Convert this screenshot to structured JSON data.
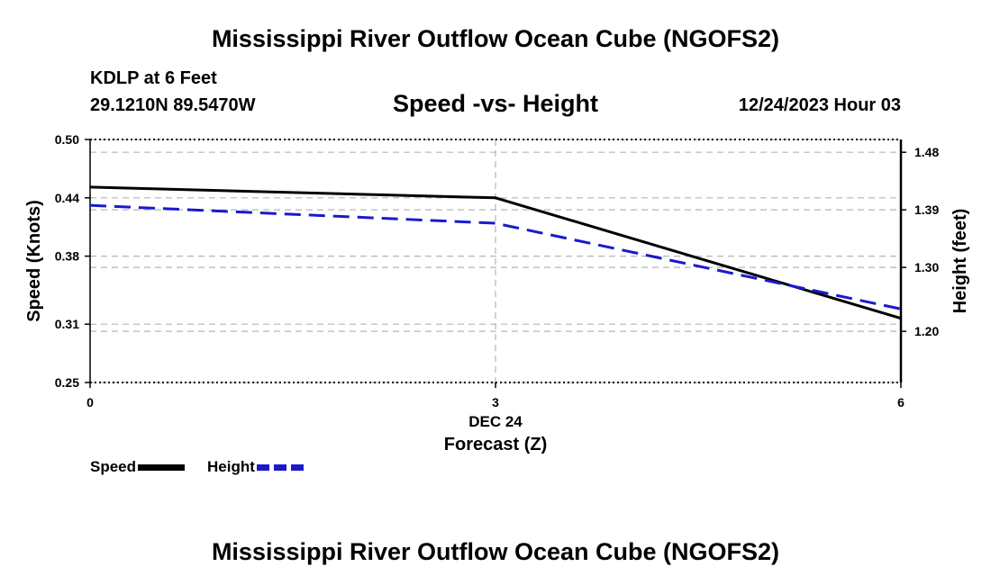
{
  "header": {
    "title": "Mississippi River Outflow Ocean Cube (NGOFS2)",
    "station": "KDLP at 6 Feet",
    "coords": "29.1210N  89.5470W",
    "subtitle": "Speed -vs- Height",
    "datetime": "12/24/2023 Hour 03"
  },
  "footer": {
    "title": "Mississippi River Outflow Ocean Cube (NGOFS2)"
  },
  "legend": [
    {
      "label": "Speed",
      "color": "#000000"
    },
    {
      "label": "Height",
      "color": "#1a1acc"
    }
  ],
  "chart_data": {
    "type": "line",
    "title": "Speed -vs- Height",
    "x": [
      0,
      3,
      6
    ],
    "xlim": [
      0,
      6
    ],
    "x_tick_labels": [
      "0",
      "3",
      "6"
    ],
    "x_date_label": "DEC 24",
    "xlabel": "Forecast (Z)",
    "ylabel": "Speed (Knots)",
    "ylim": [
      0.25,
      0.5
    ],
    "y_ticks": [
      0.25,
      0.31,
      0.38,
      0.44,
      0.5
    ],
    "y_tick_labels": [
      "0.25",
      "0.31",
      "0.38",
      "0.44",
      "0.50"
    ],
    "y2label": "Height (feet)",
    "y2lim": [
      1.12,
      1.5
    ],
    "y2_ticks": [
      1.2,
      1.3,
      1.39,
      1.48
    ],
    "y2_tick_labels": [
      "1.20",
      "1.30",
      "1.39",
      "1.48"
    ],
    "grid": true,
    "series": [
      {
        "name": "Speed",
        "axis": "left",
        "values": [
          0.451,
          0.44,
          0.316
        ],
        "color": "#000000",
        "style": "solid"
      },
      {
        "name": "Height",
        "axis": "right",
        "values": [
          1.397,
          1.369,
          1.235
        ],
        "color": "#1a1acc",
        "style": "dashed"
      }
    ]
  }
}
